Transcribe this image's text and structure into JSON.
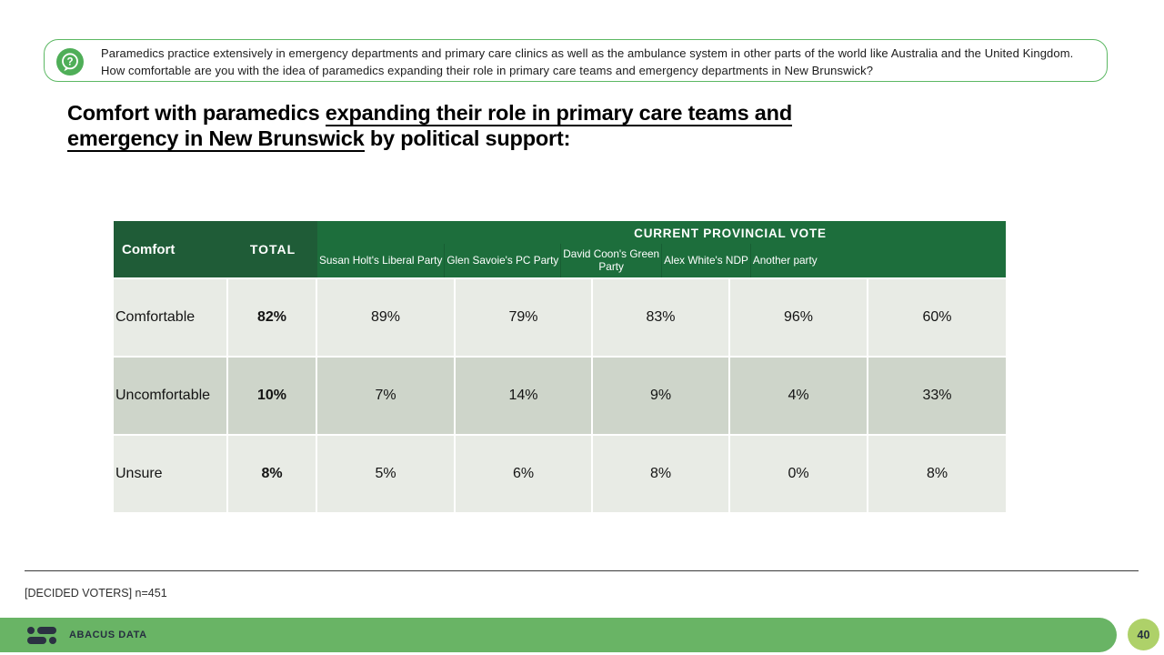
{
  "question_box": {
    "icon": "question-speech-bubble-icon",
    "text": "Paramedics practice extensively in emergency departments and primary care clinics as well as the ambulance system in other parts of the world like Australia and the United Kingdom. How comfortable are you with the idea of paramedics expanding their role in primary care teams and emergency departments in New Brunswick?"
  },
  "title": {
    "lines": [
      [
        {
          "t": "Comfort with paramedics ",
          "u": false
        },
        {
          "t": "expanding their role in primary care teams and",
          "u": true
        }
      ],
      [
        {
          "t": "emergency in New Brunswick",
          "u": true
        },
        {
          "t": " by political support:",
          "u": false
        }
      ]
    ]
  },
  "table": {
    "corner_header": "Comfort",
    "total_header": "TOTAL",
    "group_header": "CURRENT PROVINCIAL VOTE",
    "party_columns": [
      "Susan Holt's Liberal Party",
      "Glen Savoie's PC Party",
      "David Coon's Green\nParty",
      "Alex White's NDP",
      "Another party"
    ],
    "rows": [
      {
        "label": "Comfortable",
        "total": "82%",
        "values": [
          "89%",
          "79%",
          "83%",
          "96%",
          "60%"
        ]
      },
      {
        "label": "Uncomfortable",
        "total": "10%",
        "values": [
          "7%",
          "14%",
          "9%",
          "4%",
          "33%"
        ]
      },
      {
        "label": "Unsure",
        "total": "8%",
        "values": [
          "5%",
          "6%",
          "8%",
          "0%",
          "8%"
        ]
      }
    ]
  },
  "chart_data": {
    "type": "table",
    "title": "Comfort with paramedics expanding their role in primary care teams and emergency in New Brunswick by political support",
    "columns": [
      "Comfort",
      "TOTAL",
      "Susan Holt's Liberal Party",
      "Glen Savoie's PC Party",
      "David Coon's Green Party",
      "Alex White's NDP",
      "Another party"
    ],
    "rows": [
      [
        "Comfortable",
        "82%",
        "89%",
        "79%",
        "83%",
        "96%",
        "60%"
      ],
      [
        "Uncomfortable",
        "10%",
        "7%",
        "14%",
        "9%",
        "4%",
        "33%"
      ],
      [
        "Unsure",
        "8%",
        "5%",
        "6%",
        "8%",
        "0%",
        "8%"
      ]
    ]
  },
  "footnote": "[DECIDED VOTERS] n=451",
  "footer": {
    "brand": "ABACUS DATA",
    "page_number": "40"
  },
  "colors": {
    "header_dark_green": "#1f5c37",
    "header_mid_green": "#1d6e3c",
    "row_light": "#e8ebe5",
    "row_dark": "#ced5ca",
    "callout_green": "#5cb863",
    "icon_green": "#4fae58",
    "footer_bar_green": "#69b465",
    "page_badge_green": "#aed169",
    "logo_navy": "#2b3142"
  }
}
